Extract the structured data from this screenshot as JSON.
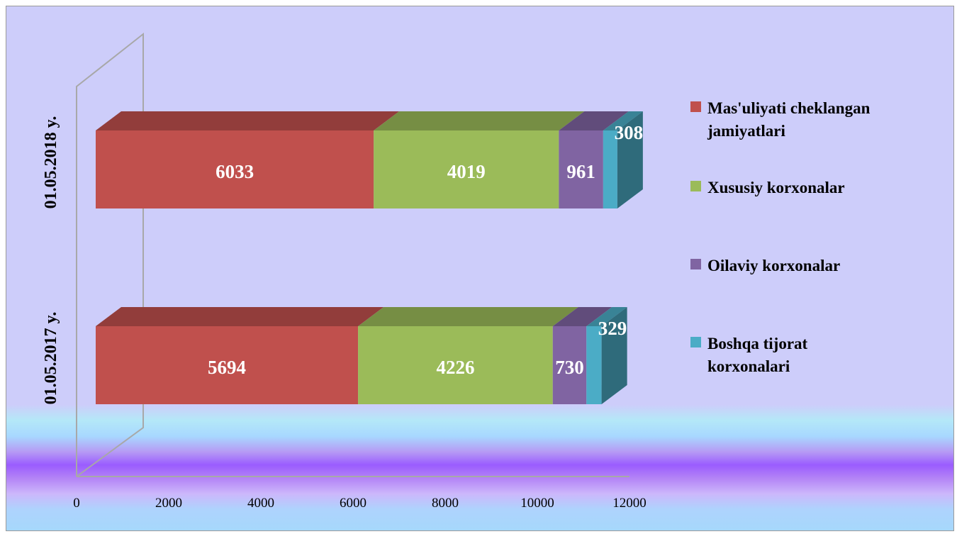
{
  "chart_data": {
    "type": "bar",
    "orientation": "horizontal",
    "stacked": true,
    "three_d": true,
    "title": "",
    "xlabel": "",
    "ylabel": "",
    "xlim": [
      0,
      12000
    ],
    "x_ticks": [
      "0",
      "2000",
      "4000",
      "6000",
      "8000",
      "10000",
      "12000"
    ],
    "categories": [
      "01.05.2017 y.",
      "01.05.2018 y."
    ],
    "series": [
      {
        "name": "Mas'uliyati cheklangan jamiyatlari",
        "name_lines": [
          "Mas'uliyati cheklangan",
          "jamiyatlari"
        ],
        "color": "#c0504d",
        "values": [
          5694,
          6033
        ]
      },
      {
        "name": "Xususiy korxonalar",
        "name_lines": [
          "Xususiy korxonalar"
        ],
        "color": "#9bbb59",
        "values": [
          4226,
          4019
        ]
      },
      {
        "name": "Oilaviy korxonalar",
        "name_lines": [
          "Oilaviy korxonalar"
        ],
        "color": "#8064a2",
        "values": [
          730,
          961
        ]
      },
      {
        "name": "Boshqa tijorat korxonalari",
        "name_lines": [
          "Boshqa tijorat",
          "korxonalari"
        ],
        "color": "#4bacc6",
        "values": [
          329,
          308
        ]
      }
    ],
    "legend_position": "right",
    "grid": false
  }
}
